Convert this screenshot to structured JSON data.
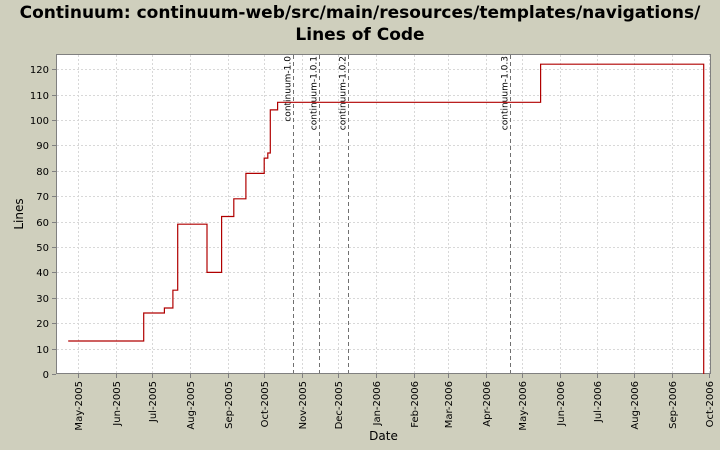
{
  "chart_data": {
    "type": "line",
    "title": "Continuum: continuum-web/src/main/resources/templates/navigations/ Lines of Code",
    "xlabel": "Date",
    "ylabel": "Lines",
    "ylim": [
      0,
      126
    ],
    "xlim": [
      "2005-04-13",
      "2006-10-03"
    ],
    "y_ticks": [
      0,
      10,
      20,
      30,
      40,
      50,
      60,
      70,
      80,
      90,
      100,
      110,
      120
    ],
    "x_ticks": [
      {
        "label": "May-2005",
        "date": "2005-05-01"
      },
      {
        "label": "Jun-2005",
        "date": "2005-06-01"
      },
      {
        "label": "Jul-2005",
        "date": "2005-07-01"
      },
      {
        "label": "Aug-2005",
        "date": "2005-08-01"
      },
      {
        "label": "Sep-2005",
        "date": "2005-09-01"
      },
      {
        "label": "Oct-2005",
        "date": "2005-10-01"
      },
      {
        "label": "Nov-2005",
        "date": "2005-11-01"
      },
      {
        "label": "Dec-2005",
        "date": "2005-12-01"
      },
      {
        "label": "Jan-2006",
        "date": "2006-01-01"
      },
      {
        "label": "Feb-2006",
        "date": "2006-02-01"
      },
      {
        "label": "Mar-2006",
        "date": "2006-03-01"
      },
      {
        "label": "Apr-2006",
        "date": "2006-04-01"
      },
      {
        "label": "May-2006",
        "date": "2006-05-01"
      },
      {
        "label": "Jun-2006",
        "date": "2006-06-01"
      },
      {
        "label": "Jul-2006",
        "date": "2006-07-01"
      },
      {
        "label": "Aug-2006",
        "date": "2006-08-01"
      },
      {
        "label": "Sep-2006",
        "date": "2006-09-01"
      },
      {
        "label": "Oct-2006",
        "date": "2006-10-01"
      }
    ],
    "grid": true,
    "series": [
      {
        "step": true,
        "points": [
          {
            "x": "2005-04-23",
            "y": 13
          },
          {
            "x": "2005-06-24",
            "y": 24
          },
          {
            "x": "2005-07-11",
            "y": 26
          },
          {
            "x": "2005-07-18",
            "y": 33
          },
          {
            "x": "2005-07-22",
            "y": 59
          },
          {
            "x": "2005-08-15",
            "y": 40
          },
          {
            "x": "2005-08-27",
            "y": 62
          },
          {
            "x": "2005-09-06",
            "y": 69
          },
          {
            "x": "2005-09-16",
            "y": 79
          },
          {
            "x": "2005-10-01",
            "y": 85
          },
          {
            "x": "2005-10-04",
            "y": 87
          },
          {
            "x": "2005-10-06",
            "y": 104
          },
          {
            "x": "2005-10-12",
            "y": 107
          },
          {
            "x": "2006-05-16",
            "y": 122
          },
          {
            "x": "2006-09-27",
            "y": 122
          },
          {
            "x": "2006-09-27",
            "y": 0
          }
        ]
      }
    ],
    "color": "#b00000",
    "markers": [
      {
        "label": "continuum-1.0",
        "x": "2005-10-25"
      },
      {
        "label": "continuum-1.0.1",
        "x": "2005-11-15"
      },
      {
        "label": "continuum-1.0.2",
        "x": "2005-12-09"
      },
      {
        "label": "continuum-1.0.3",
        "x": "2006-04-21"
      }
    ]
  }
}
